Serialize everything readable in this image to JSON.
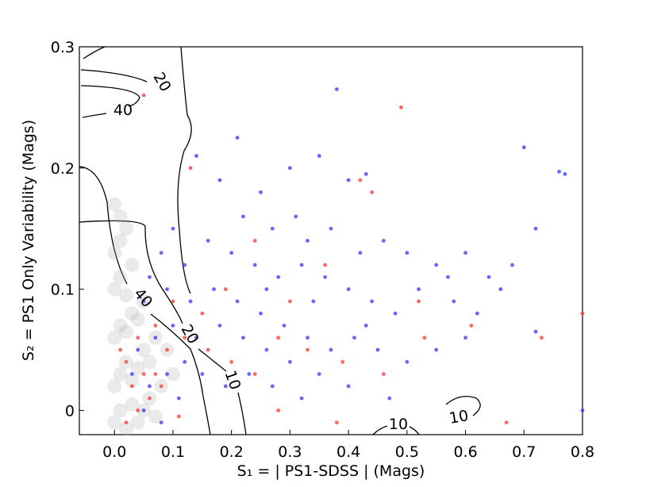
{
  "chart_data": {
    "type": "scatter",
    "x_label": "S₁ = | PS1-SDSS | (Mags)",
    "y_label": "S₂ = PS1 Only Variability (Mags)",
    "xlim": [
      -0.06,
      0.8
    ],
    "ylim": [
      -0.02,
      0.3
    ],
    "xticks": [
      {
        "value": 0,
        "label": "0.0"
      },
      0.1,
      0.2,
      0.3,
      0.4,
      0.5,
      0.6,
      0.7,
      0.8
    ],
    "yticks": [
      0,
      0.1,
      0.2,
      0.3
    ],
    "contour_labels": [
      20,
      40,
      40,
      20,
      10,
      10,
      10
    ],
    "series": [
      {
        "color": "#aaaaaa",
        "x": [
          0.0,
          0.01,
          0.02,
          0.03,
          0.04,
          0.05,
          0.06,
          0.07,
          0.0,
          0.01,
          0.02,
          0.03,
          0.04,
          0.05,
          0.06,
          0.0,
          0.01,
          0.02,
          0.03,
          0.04,
          0.05,
          0.0,
          0.01,
          0.02,
          0.03,
          0.0,
          0.01,
          0.02,
          0.0,
          0.01,
          0.08,
          0.09,
          0.1,
          0.07
        ],
        "y": [
          -0.01,
          0.0,
          -0.015,
          0.005,
          -0.01,
          0.0,
          0.01,
          -0.005,
          0.02,
          0.03,
          0.04,
          0.025,
          0.035,
          0.05,
          0.04,
          0.06,
          0.07,
          0.065,
          0.08,
          0.075,
          0.09,
          0.1,
          0.11,
          0.095,
          0.12,
          0.13,
          0.14,
          0.15,
          0.17,
          0.16,
          0.02,
          0.05,
          0.03,
          0.06
        ]
      },
      {
        "color": "#3333ff",
        "x": [
          0.21,
          0.14,
          0.18,
          0.25,
          0.3,
          0.35,
          0.38,
          0.4,
          0.43,
          0.7,
          0.76,
          0.77,
          0.72,
          0.22,
          0.27,
          0.31,
          0.33,
          0.37,
          0.42,
          0.46,
          0.5,
          0.55,
          0.6,
          0.64,
          0.66,
          0.68,
          0.58,
          0.52,
          0.48,
          0.44,
          0.4,
          0.36,
          0.32,
          0.28,
          0.24,
          0.2,
          0.16,
          0.12,
          0.1,
          0.08,
          0.06,
          0.05,
          0.09,
          0.13,
          0.17,
          0.21,
          0.25,
          0.29,
          0.33,
          0.37,
          0.41,
          0.45,
          0.5,
          0.55,
          0.6,
          0.72,
          0.8,
          0.35,
          0.3,
          0.26,
          0.22,
          0.18,
          0.14,
          0.1,
          0.07,
          0.04,
          0.03,
          0.06,
          0.09,
          0.12,
          0.15,
          0.19,
          0.23,
          0.27,
          0.32,
          0.4,
          0.47,
          0.05,
          0.08,
          0.11,
          0.26,
          0.34,
          0.43,
          0.57,
          0.62
        ],
        "y": [
          0.225,
          0.21,
          0.19,
          0.18,
          0.2,
          0.21,
          0.265,
          0.19,
          0.195,
          0.217,
          0.197,
          0.195,
          0.15,
          0.16,
          0.15,
          0.16,
          0.14,
          0.15,
          0.13,
          0.14,
          0.13,
          0.12,
          0.13,
          0.11,
          0.1,
          0.12,
          0.09,
          0.1,
          0.08,
          0.09,
          0.1,
          0.11,
          0.12,
          0.11,
          0.12,
          0.13,
          0.14,
          0.12,
          0.15,
          0.13,
          0.11,
          0.09,
          0.1,
          0.09,
          0.1,
          0.09,
          0.08,
          0.07,
          0.06,
          0.05,
          0.06,
          0.05,
          0.04,
          0.05,
          0.06,
          0.065,
          0.0,
          0.03,
          0.04,
          0.05,
          0.06,
          0.07,
          0.06,
          0.07,
          0.06,
          0.05,
          0.03,
          0.02,
          0.03,
          0.04,
          0.03,
          0.02,
          0.03,
          0.02,
          0.01,
          0.02,
          0.01,
          0.0,
          -0.01,
          0.01,
          0.1,
          0.09,
          0.07,
          0.11,
          0.08
        ]
      },
      {
        "color": "#ff3333",
        "x": [
          0.05,
          0.49,
          0.13,
          0.42,
          0.44,
          0.24,
          0.36,
          0.52,
          0.8,
          0.3,
          0.19,
          0.15,
          0.1,
          0.07,
          0.04,
          0.02,
          0.05,
          0.03,
          0.06,
          0.04,
          0.07,
          0.09,
          0.12,
          0.16,
          0.2,
          0.24,
          0.28,
          0.33,
          0.39,
          0.46,
          0.53,
          0.61,
          0.73,
          0.67,
          0.38,
          0.28,
          0.02,
          0.01,
          0.08,
          0.11
        ],
        "y": [
          0.26,
          0.25,
          0.2,
          0.19,
          0.18,
          0.14,
          0.12,
          0.09,
          0.08,
          0.09,
          0.1,
          0.08,
          0.09,
          0.07,
          0.06,
          0.04,
          0.03,
          0.02,
          0.01,
          0.0,
          0.03,
          0.05,
          0.06,
          0.05,
          0.04,
          0.03,
          0.06,
          0.05,
          0.04,
          0.03,
          0.06,
          0.07,
          0.06,
          -0.01,
          -0.01,
          0.0,
          -0.01,
          0.05,
          0.02,
          -0.005
        ]
      }
    ]
  }
}
